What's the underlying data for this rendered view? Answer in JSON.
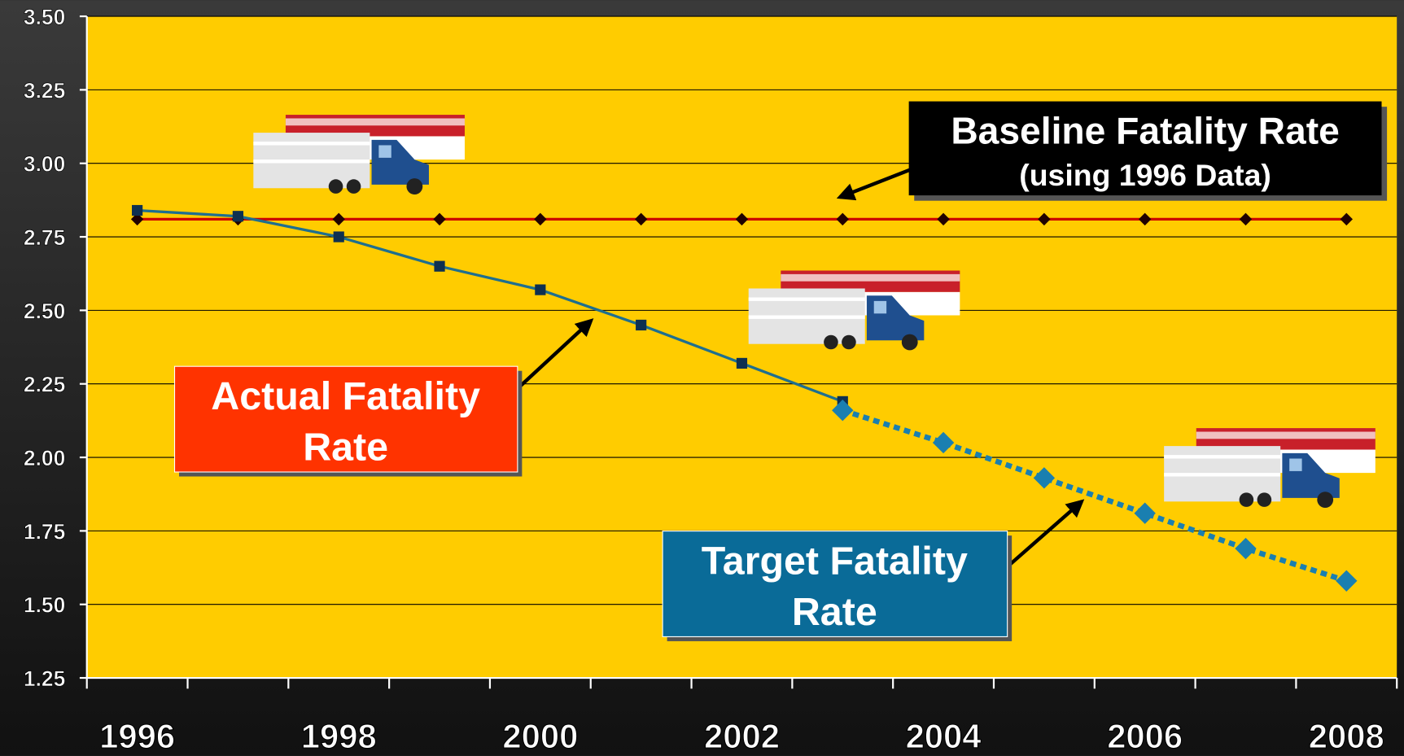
{
  "chart_data": {
    "type": "line",
    "categories": [
      "1996",
      null,
      "1998",
      null,
      "2000",
      null,
      "2002",
      null,
      "2004",
      null,
      "2006",
      null,
      "2008"
    ],
    "series": [
      {
        "color": "#cc0000",
        "marker": "diamond",
        "values": [
          2.81,
          2.81,
          2.81,
          2.81,
          2.81,
          2.81,
          2.81,
          2.81,
          2.81,
          2.81,
          2.81,
          2.81,
          2.81
        ]
      },
      {
        "color": "#1f6f8f",
        "marker": "square",
        "values": [
          2.84,
          2.82,
          2.75,
          2.65,
          2.57,
          2.45,
          2.32,
          2.19,
          null,
          null,
          null,
          null,
          null
        ]
      },
      {
        "color": "#1a7fb0",
        "marker": "big-diamond",
        "dashed": true,
        "values": [
          null,
          null,
          null,
          null,
          null,
          null,
          null,
          2.16,
          2.05,
          1.93,
          1.81,
          1.69,
          1.58
        ]
      }
    ],
    "ylim": [
      1.25,
      3.5
    ],
    "yticks": [
      1.25,
      {
        "value": 1.5,
        "label": "1.50"
      },
      1.75,
      {
        "value": 2,
        "label": "2.00"
      },
      2.25,
      {
        "value": 2.5,
        "label": "2.50"
      },
      2.75,
      {
        "value": 3,
        "label": "3.00"
      },
      3.25,
      {
        "value": 3.5,
        "label": "3.50"
      }
    ],
    "grid": true,
    "annotations": [
      {
        "lines": [
          "Baseline Fatality Rate",
          "(using 1996 Data)"
        ]
      },
      {
        "lines": [
          "Actual Fatality",
          "Rate"
        ]
      },
      {
        "lines": [
          "Target Fatality",
          "Rate"
        ]
      }
    ]
  }
}
